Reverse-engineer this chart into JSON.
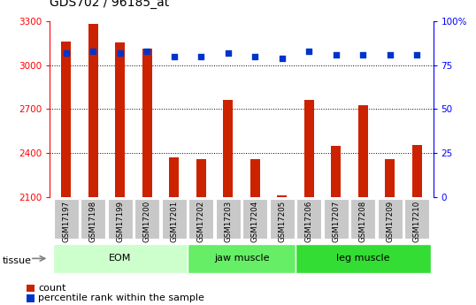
{
  "title": "GDS702 / 96185_at",
  "samples": [
    "GSM17197",
    "GSM17198",
    "GSM17199",
    "GSM17200",
    "GSM17201",
    "GSM17202",
    "GSM17203",
    "GSM17204",
    "GSM17205",
    "GSM17206",
    "GSM17207",
    "GSM17208",
    "GSM17209",
    "GSM17210"
  ],
  "counts": [
    3160,
    3280,
    3155,
    3115,
    2370,
    2355,
    2765,
    2360,
    2112,
    2765,
    2450,
    2725,
    2360,
    2455
  ],
  "percentiles": [
    82,
    83,
    82,
    83,
    80,
    80,
    82,
    80,
    79,
    83,
    81,
    81,
    81,
    81
  ],
  "ymin": 2100,
  "ymax": 3300,
  "yticks": [
    2100,
    2400,
    2700,
    3000,
    3300
  ],
  "y2min": 0,
  "y2max": 100,
  "y2ticks": [
    0,
    25,
    50,
    75,
    100
  ],
  "bar_color": "#CC2200",
  "dot_color": "#0033CC",
  "bg_color": "#FFFFFF",
  "plot_bg": "#FFFFFF",
  "xticklabel_bg": "#C8C8C8",
  "groups": [
    {
      "label": "EOM",
      "start": 0,
      "end": 4,
      "color": "#CCFFCC"
    },
    {
      "label": "jaw muscle",
      "start": 5,
      "end": 8,
      "color": "#66EE66"
    },
    {
      "label": "leg muscle",
      "start": 9,
      "end": 13,
      "color": "#33DD33"
    }
  ],
  "tissue_label": "tissue",
  "legend_count_label": "count",
  "legend_pct_label": "percentile rank within the sample",
  "title_fontsize": 10,
  "tick_fontsize": 7.5,
  "label_fontsize": 8
}
